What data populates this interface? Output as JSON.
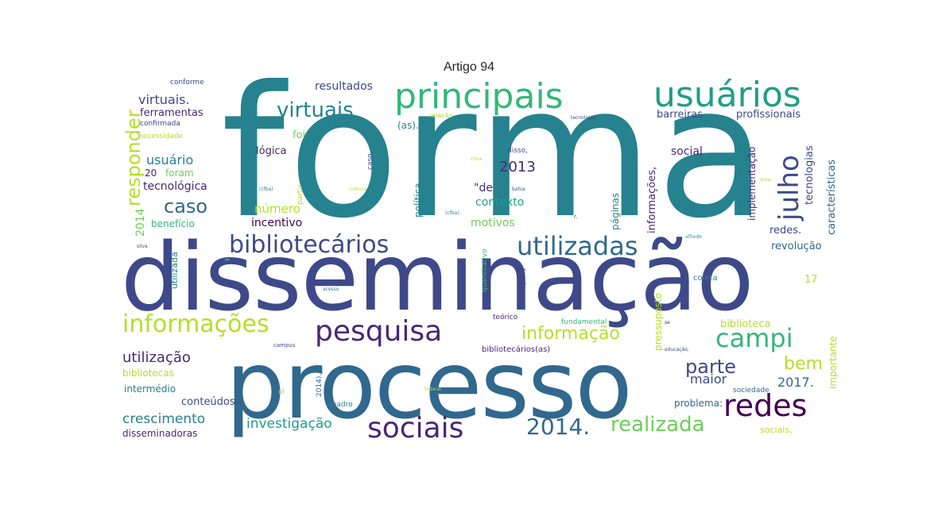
{
  "title": "Artigo 94",
  "colors": {
    "dark_purple": "#440154",
    "purple": "#482878",
    "indigo": "#3e4989",
    "blue": "#31688e",
    "teal_blue": "#26828e",
    "teal": "#1f9e89",
    "green": "#35b779",
    "light_green": "#6ece58",
    "yellow_green": "#b5de2b",
    "yellow": "#fde725"
  },
  "words": {
    "forma": "forma",
    "disseminacao": "disseminação",
    "processo": "processo",
    "principais": "principais",
    "usuarios": "usuários",
    "bibliotecarios": "bibliotecários",
    "utilizadas": "utilizadas",
    "informacoes": "informações",
    "pesquisa": "pesquisa",
    "campi": "campi",
    "julho": "julho",
    "redes": "redes",
    "sociais": "sociais",
    "w2014dot": "2014.",
    "realizada": "realizada",
    "virtuais": "virtuais",
    "virtuais_dot": "virtuais.",
    "responder": "responder",
    "caso": "caso",
    "informacao": "informação",
    "parte": "parte",
    "bem": "bem",
    "maior": "maior",
    "w2017dot": "2017.",
    "utilizacao": "utilização",
    "crescimento": "crescimento",
    "investigacao": "investigação",
    "w2013": "2013",
    "usuario": "usuário",
    "tecnologica": "tecnológica",
    "numero": "número",
    "incentivo": "incentivo",
    "motivos": "motivos",
    "contexto": "contexto",
    "de_quote": "\"de",
    "resultados": "resultados",
    "ferramentas": "ferramentas",
    "barreiras": "barreiras",
    "profissionais": "profissionais",
    "social": "social",
    "informacoes_comma": "informações,",
    "implementacao": "implementação",
    "tecnologias": "tecnologias",
    "caracteristicas": "características",
    "redes_dot": "redes.",
    "revolucao": "revolução",
    "coleta": "coleta",
    "w17": "17",
    "biblioteca": "biblioteca",
    "importante": "importante",
    "sociedade": "sociedade",
    "problema": "problema:",
    "sociais_comma": "sociais,",
    "conteudos": "conteúdos",
    "intermedio": "intermédio",
    "bibliotecas": "bibliotecas",
    "disseminadoras": "disseminadoras",
    "beneficio": "benefício",
    "utilizada": "utilizada",
    "w2014": "2014",
    "foram": "foram",
    "w20": "20",
    "conforme": "conforme",
    "confirmada": "confirmada",
    "necessidade": "necessidade",
    "logica": "lógica",
    "foi": "foi",
    "as_paren": "(as).",
    "relacao": "relação",
    "paginas": "páginas",
    "politica": "política",
    "pressuposto": "pressuposto",
    "teorico": "teórico",
    "fundamental": "fundamental",
    "bibliotecarios_as": "bibliotecários(as)",
    "quadro": "quadro",
    "n_dot": "n.",
    "w2014paren": "2014).",
    "quantitativo": "quantitativo",
    "partir": "partir",
    "disso": "disso,",
    "tecnologia": "tecnologia",
    "caso_comma": "caso,",
    "informacao_colon": "informação:",
    "silva": "silva",
    "in": "in",
    "campus": "campus",
    "educacao": "educação,",
    "federal": "federal",
    "bahia": "bahia",
    "ciencia": "ciência",
    "cfba": "(cfba)",
    "cfba2": "(cfba).",
    "as2": "(as)",
    "ii_dot": "ii.",
    "r_dot": "r.",
    "alfredo": "alfredo",
    "cima": "cima",
    "acesso": "acesso",
    "area": "área",
    "ol": "ol",
    "dash": "-",
    "se": "se"
  }
}
